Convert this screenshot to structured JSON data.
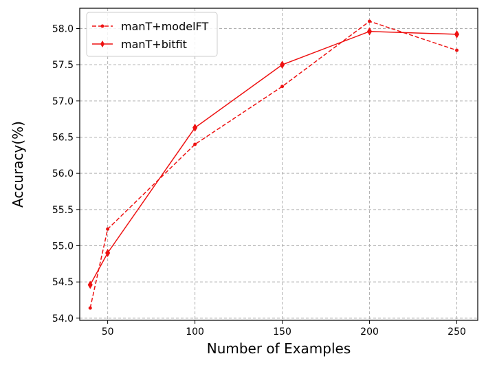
{
  "chart_data": {
    "type": "line",
    "title": "",
    "xlabel": "Number of Examples",
    "ylabel": "Accuracy(%)",
    "xlim": [
      34,
      262
    ],
    "ylim": [
      53.97,
      58.28
    ],
    "xticks": [
      50,
      100,
      150,
      200,
      250
    ],
    "yticks": [
      54.0,
      54.5,
      55.0,
      55.5,
      56.0,
      56.5,
      57.0,
      57.5,
      58.0
    ],
    "grid": true,
    "legend_position": "top-left",
    "series": [
      {
        "name": "manT+modelFT",
        "color": "#ee1111",
        "linestyle": "dashed",
        "marker": "dot",
        "x": [
          40,
          50,
          100,
          150,
          200,
          250
        ],
        "y": [
          54.14,
          55.23,
          56.4,
          57.2,
          58.1,
          57.7
        ]
      },
      {
        "name": "manT+bitfit",
        "color": "#ee1111",
        "linestyle": "solid",
        "marker": "diamond",
        "x": [
          40,
          50,
          100,
          150,
          200,
          250
        ],
        "y": [
          54.46,
          54.9,
          56.63,
          57.5,
          57.96,
          57.92
        ]
      }
    ]
  }
}
